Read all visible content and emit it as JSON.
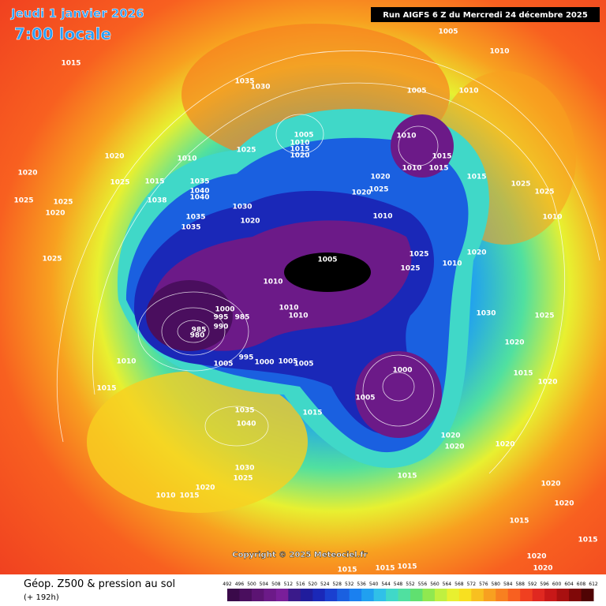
{
  "header": {
    "date": "Jeudi 1 janvier 2026",
    "time": "7:00 locale",
    "run": "Run AIGFS 6 Z du Mercredi 24 décembre 2025"
  },
  "map": {
    "copyright": "Copyright © 2025 Meteociel.fr",
    "pressure_labels": [
      "1005",
      "1010",
      "1015",
      "1035",
      "1030",
      "1005",
      "1010",
      "1005",
      "1010",
      "1015",
      "1020",
      "1025",
      "1010",
      "1015",
      "1010",
      "1015",
      "1010",
      "1020",
      "1020",
      "1025",
      "1015",
      "1035",
      "1040",
      "1040",
      "1038",
      "1020",
      "1025",
      "1020",
      "1015",
      "1025",
      "1025",
      "1025",
      "1025",
      "1020",
      "1030",
      "1020",
      "1010",
      "1035",
      "1035",
      "1005",
      "1025",
      "1025",
      "1010",
      "1020",
      "1025",
      "1010",
      "1000",
      "995",
      "985",
      "990",
      "985",
      "980",
      "1010",
      "1010",
      "1030",
      "1010",
      "1005",
      "995",
      "1000",
      "1005",
      "1005",
      "1000",
      "1005",
      "1015",
      "1035",
      "1040",
      "1015",
      "1020",
      "1020",
      "1020",
      "1030",
      "1025",
      "1020",
      "1010",
      "1015",
      "1015",
      "1020",
      "1020",
      "1015",
      "1015",
      "1020",
      "1020",
      "1015",
      "1015",
      "1015",
      "1015",
      "1020",
      "1020",
      "1025",
      "1010"
    ]
  },
  "legend": {
    "title": "Géop. Z500 & pression au sol",
    "lead": "(+ 192h)",
    "labels": [
      492,
      496,
      500,
      504,
      508,
      512,
      516,
      520,
      524,
      528,
      532,
      536,
      540,
      544,
      548,
      552,
      556,
      560,
      564,
      568,
      572,
      576,
      580,
      584,
      588,
      592,
      596,
      600,
      604,
      608,
      612
    ],
    "colors": [
      "#3a0a4a",
      "#4a0e5e",
      "#5c1473",
      "#6c1a88",
      "#7a1f9a",
      "#3a1a8a",
      "#201c9c",
      "#1a28b8",
      "#1a40d0",
      "#1a60e0",
      "#1a80f0",
      "#20a0f0",
      "#30c0e8",
      "#40d8c8",
      "#50e0a0",
      "#60e070",
      "#90e850",
      "#c0f040",
      "#e8f030",
      "#f8e020",
      "#f8c020",
      "#f8a020",
      "#f88020",
      "#f86020",
      "#f04020",
      "#e02820",
      "#c81818",
      "#a81010",
      "#800808",
      "#500404"
    ]
  }
}
